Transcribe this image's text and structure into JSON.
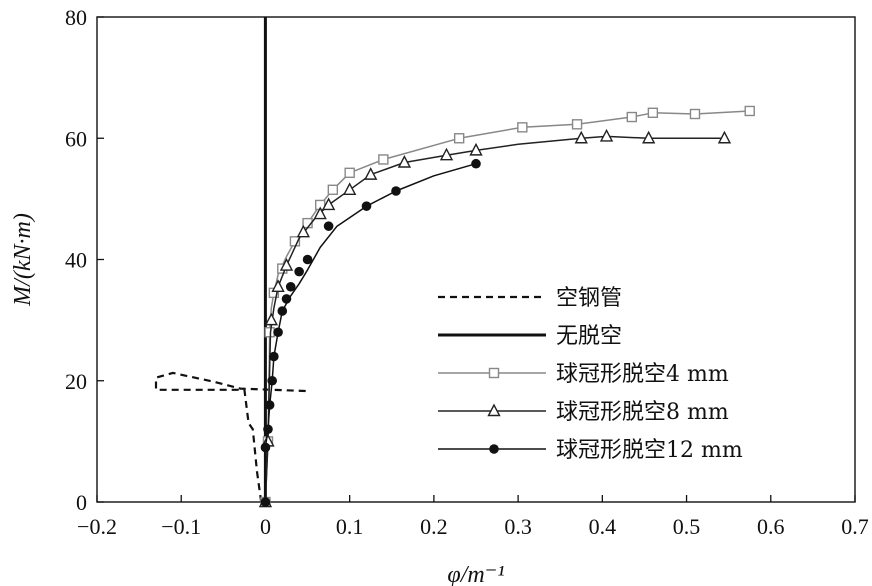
{
  "chart_data": {
    "type": "line",
    "xlabel": "φ/m⁻¹",
    "ylabel": "M/(kN·m)",
    "xlim": [
      -0.2,
      0.7
    ],
    "ylim": [
      0,
      80
    ],
    "xticks": [
      -0.2,
      -0.1,
      0,
      0.1,
      0.2,
      0.3,
      0.4,
      0.5,
      0.6,
      0.7
    ],
    "xtick_labels": [
      "−0.2",
      "−0.1",
      "0",
      "0.1",
      "0.2",
      "0.3",
      "0.4",
      "0.5",
      "0.6",
      "0.7"
    ],
    "yticks": [
      0,
      20,
      40,
      60,
      80
    ],
    "ytick_labels": [
      "0",
      "20",
      "40",
      "60",
      "80"
    ],
    "grid": false,
    "legend_position": "lower-right",
    "series": [
      {
        "name": "空钢管",
        "style": "dashed",
        "marker": "none",
        "color": "#111111",
        "points": [
          [
            -0.005,
            0
          ],
          [
            -0.01,
            5
          ],
          [
            -0.015,
            12
          ],
          [
            -0.02,
            13
          ],
          [
            -0.025,
            18.5
          ],
          [
            -0.13,
            18.5
          ],
          [
            -0.13,
            20.5
          ],
          [
            -0.11,
            21.3
          ],
          [
            -0.06,
            19.8
          ],
          [
            -0.03,
            18.7
          ],
          [
            0.05,
            18.3
          ]
        ]
      },
      {
        "name": "无脱空",
        "style": "solid-thick",
        "marker": "none",
        "color": "#111111",
        "points": [
          [
            0,
            0
          ],
          [
            0,
            80
          ]
        ]
      },
      {
        "name": "球冠形脱空4 mm",
        "style": "solid-thin",
        "marker": "square-open",
        "color": "#888888",
        "points": [
          [
            0,
            0
          ],
          [
            0.003,
            10
          ],
          [
            0.005,
            28
          ],
          [
            0.007,
            32
          ],
          [
            0.01,
            34.5
          ],
          [
            0.015,
            37.5
          ],
          [
            0.025,
            40.5
          ],
          [
            0.035,
            43
          ],
          [
            0.045,
            45
          ],
          [
            0.055,
            47
          ],
          [
            0.065,
            49
          ],
          [
            0.08,
            51.5
          ],
          [
            0.1,
            54.3
          ],
          [
            0.14,
            56.5
          ],
          [
            0.23,
            60
          ],
          [
            0.305,
            61.8
          ],
          [
            0.37,
            62.3
          ],
          [
            0.435,
            63.5
          ],
          [
            0.46,
            64.2
          ],
          [
            0.51,
            64
          ],
          [
            0.575,
            64.5
          ]
        ],
        "markers": [
          [
            0,
            0
          ],
          [
            0.003,
            10
          ],
          [
            0.005,
            28
          ],
          [
            0.01,
            34.5
          ],
          [
            0.02,
            38.5
          ],
          [
            0.035,
            43
          ],
          [
            0.05,
            46
          ],
          [
            0.065,
            49
          ],
          [
            0.08,
            51.5
          ],
          [
            0.1,
            54.3
          ],
          [
            0.14,
            56.5
          ],
          [
            0.23,
            60
          ],
          [
            0.305,
            61.8
          ],
          [
            0.37,
            62.3
          ],
          [
            0.435,
            63.5
          ],
          [
            0.46,
            64.2
          ],
          [
            0.51,
            64
          ],
          [
            0.575,
            64.5
          ]
        ]
      },
      {
        "name": "球冠形脱空8 mm",
        "style": "solid-thin",
        "marker": "triangle-open",
        "color": "#222222",
        "points": [
          [
            0,
            0
          ],
          [
            0.003,
            10
          ],
          [
            0.006,
            28
          ],
          [
            0.01,
            32
          ],
          [
            0.015,
            35.5
          ],
          [
            0.025,
            39
          ],
          [
            0.04,
            43.5
          ],
          [
            0.06,
            47
          ],
          [
            0.075,
            49
          ],
          [
            0.1,
            51.5
          ],
          [
            0.125,
            54
          ],
          [
            0.165,
            56
          ],
          [
            0.215,
            57.2
          ],
          [
            0.25,
            58
          ],
          [
            0.3,
            59
          ],
          [
            0.375,
            60
          ],
          [
            0.405,
            60.3
          ],
          [
            0.455,
            60
          ],
          [
            0.545,
            60
          ]
        ],
        "markers": [
          [
            0,
            0
          ],
          [
            0.003,
            10
          ],
          [
            0.007,
            30
          ],
          [
            0.015,
            35.5
          ],
          [
            0.025,
            39
          ],
          [
            0.045,
            44.5
          ],
          [
            0.065,
            47.5
          ],
          [
            0.075,
            49
          ],
          [
            0.1,
            51.5
          ],
          [
            0.125,
            54
          ],
          [
            0.165,
            56
          ],
          [
            0.215,
            57.2
          ],
          [
            0.25,
            58
          ],
          [
            0.375,
            60
          ],
          [
            0.405,
            60.3
          ],
          [
            0.455,
            60
          ],
          [
            0.545,
            60
          ]
        ]
      },
      {
        "name": "球冠形脱空12 mm",
        "style": "solid-thin",
        "marker": "circle-filled",
        "color": "#111111",
        "points": [
          [
            0,
            0
          ],
          [
            0,
            9
          ],
          [
            0.003,
            12
          ],
          [
            0.005,
            16
          ],
          [
            0.008,
            20
          ],
          [
            0.01,
            24
          ],
          [
            0.015,
            28
          ],
          [
            0.02,
            31.5
          ],
          [
            0.03,
            34
          ],
          [
            0.04,
            36
          ],
          [
            0.05,
            38.3
          ],
          [
            0.065,
            42
          ],
          [
            0.085,
            45.5
          ],
          [
            0.12,
            48.8
          ],
          [
            0.155,
            51.3
          ],
          [
            0.2,
            53.8
          ],
          [
            0.25,
            55.8
          ]
        ],
        "markers": [
          [
            0,
            0
          ],
          [
            0,
            9
          ],
          [
            0.003,
            12
          ],
          [
            0.005,
            16
          ],
          [
            0.008,
            20
          ],
          [
            0.01,
            24
          ],
          [
            0.015,
            28
          ],
          [
            0.02,
            31.5
          ],
          [
            0.025,
            33.5
          ],
          [
            0.03,
            35.5
          ],
          [
            0.04,
            38
          ],
          [
            0.05,
            40
          ],
          [
            0.075,
            45.5
          ],
          [
            0.12,
            48.8
          ],
          [
            0.155,
            51.3
          ],
          [
            0.25,
            55.8
          ]
        ]
      }
    ]
  }
}
